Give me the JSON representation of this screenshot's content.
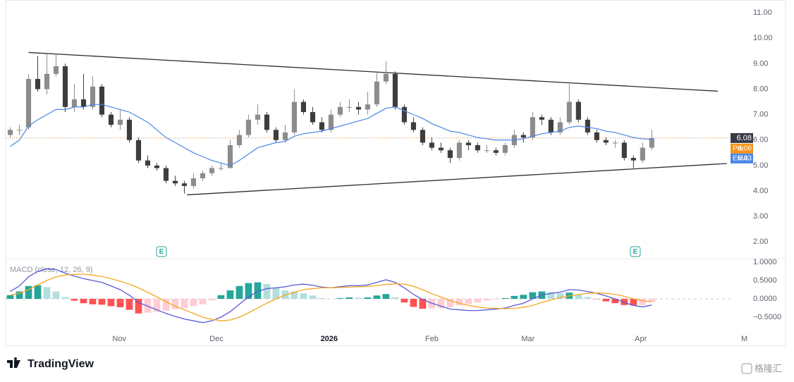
{
  "chart_data": [
    {
      "type": "candlestick",
      "ohlc": [
        [
          6.2,
          6.5,
          6.1,
          6.4
        ],
        [
          6.4,
          6.6,
          6.2,
          6.4
        ],
        [
          6.5,
          8.6,
          6.4,
          8.4
        ],
        [
          8.4,
          9.3,
          7.9,
          8.0
        ],
        [
          8.0,
          9.4,
          7.8,
          8.6
        ],
        [
          8.6,
          9.4,
          8.5,
          8.9
        ],
        [
          8.9,
          9.0,
          7.1,
          7.3
        ],
        [
          7.3,
          8.2,
          7.1,
          7.6
        ],
        [
          7.6,
          8.6,
          7.2,
          7.3
        ],
        [
          7.3,
          8.5,
          7.2,
          8.1
        ],
        [
          8.1,
          8.2,
          6.9,
          7.0
        ],
        [
          7.0,
          7.1,
          6.5,
          6.6
        ],
        [
          6.6,
          7.2,
          6.4,
          6.8
        ],
        [
          6.8,
          6.9,
          5.9,
          6.0
        ],
        [
          6.0,
          6.1,
          5.1,
          5.2
        ],
        [
          5.2,
          5.4,
          4.9,
          5.0
        ],
        [
          5.0,
          5.1,
          4.8,
          4.9
        ],
        [
          4.9,
          5.0,
          4.3,
          4.4
        ],
        [
          4.4,
          4.6,
          4.2,
          4.3
        ],
        [
          4.3,
          4.4,
          3.9,
          4.2
        ],
        [
          4.2,
          4.7,
          4.1,
          4.5
        ],
        [
          4.5,
          4.8,
          4.4,
          4.7
        ],
        [
          4.7,
          5.0,
          4.6,
          4.9
        ],
        [
          4.9,
          5.1,
          4.8,
          4.9
        ],
        [
          4.9,
          6.0,
          4.9,
          5.8
        ],
        [
          5.8,
          6.4,
          5.7,
          6.2
        ],
        [
          6.2,
          7.0,
          6.1,
          6.8
        ],
        [
          6.8,
          7.4,
          6.6,
          7.0
        ],
        [
          7.0,
          7.1,
          6.3,
          6.4
        ],
        [
          6.4,
          6.5,
          5.9,
          6.0
        ],
        [
          6.0,
          6.6,
          5.9,
          6.3
        ],
        [
          6.3,
          8.0,
          6.2,
          7.5
        ],
        [
          7.5,
          7.6,
          7.0,
          7.1
        ],
        [
          7.1,
          7.3,
          6.6,
          6.7
        ],
        [
          6.7,
          6.9,
          6.3,
          6.4
        ],
        [
          6.4,
          7.2,
          6.3,
          7.0
        ],
        [
          7.0,
          7.5,
          6.9,
          7.3
        ],
        [
          7.3,
          7.6,
          7.1,
          7.3
        ],
        [
          7.3,
          7.5,
          7.0,
          7.2
        ],
        [
          7.2,
          7.9,
          7.0,
          7.4
        ],
        [
          7.4,
          8.7,
          7.3,
          8.3
        ],
        [
          8.3,
          9.1,
          8.2,
          8.6
        ],
        [
          8.6,
          8.7,
          7.2,
          7.3
        ],
        [
          7.3,
          7.4,
          6.6,
          6.7
        ],
        [
          6.7,
          6.9,
          6.3,
          6.4
        ],
        [
          6.4,
          6.5,
          5.8,
          5.9
        ],
        [
          5.9,
          6.1,
          5.6,
          5.7
        ],
        [
          5.7,
          5.9,
          5.5,
          5.6
        ],
        [
          5.6,
          5.7,
          5.1,
          5.3
        ],
        [
          5.3,
          6.0,
          5.2,
          5.9
        ],
        [
          5.9,
          6.0,
          5.6,
          5.8
        ],
        [
          5.8,
          5.9,
          5.5,
          5.6
        ],
        [
          5.6,
          5.8,
          5.5,
          5.6
        ],
        [
          5.6,
          5.7,
          5.4,
          5.5
        ],
        [
          5.5,
          5.9,
          5.4,
          5.8
        ],
        [
          5.8,
          6.4,
          5.7,
          6.2
        ],
        [
          6.2,
          6.3,
          5.9,
          6.1
        ],
        [
          6.1,
          7.1,
          6.0,
          6.9
        ],
        [
          6.9,
          7.0,
          6.6,
          6.8
        ],
        [
          6.8,
          6.9,
          6.2,
          6.3
        ],
        [
          6.3,
          6.9,
          6.2,
          6.7
        ],
        [
          6.7,
          8.2,
          6.6,
          7.5
        ],
        [
          7.5,
          7.6,
          6.7,
          6.8
        ],
        [
          6.8,
          6.9,
          6.2,
          6.3
        ],
        [
          6.3,
          6.4,
          5.9,
          6.0
        ],
        [
          6.0,
          6.1,
          5.8,
          5.9
        ],
        [
          5.9,
          6.0,
          5.7,
          5.9
        ],
        [
          5.9,
          6.0,
          5.2,
          5.3
        ],
        [
          5.3,
          5.4,
          4.9,
          5.2
        ],
        [
          5.2,
          5.9,
          5.1,
          5.7
        ],
        [
          5.7,
          6.4,
          5.6,
          6.08
        ]
      ],
      "up_color": "#8c8c8c",
      "down_color": "#3d3d3d",
      "series": [
        {
          "name": "EMA",
          "color": "#4a86e8",
          "values": [
            5.75,
            6.0,
            6.55,
            6.8,
            7.0,
            7.2,
            7.2,
            7.3,
            7.3,
            7.4,
            7.4,
            7.3,
            7.2,
            7.1,
            6.9,
            6.7,
            6.4,
            6.1,
            5.9,
            5.7,
            5.5,
            5.35,
            5.2,
            5.1,
            5.0,
            5.2,
            5.45,
            5.7,
            5.8,
            5.9,
            5.95,
            6.15,
            6.25,
            6.3,
            6.35,
            6.45,
            6.55,
            6.65,
            6.75,
            6.85,
            7.05,
            7.25,
            7.3,
            7.15,
            7.0,
            6.85,
            6.65,
            6.5,
            6.35,
            6.3,
            6.2,
            6.1,
            6.05,
            6.0,
            6.0,
            6.0,
            6.05,
            6.15,
            6.25,
            6.3,
            6.35,
            6.5,
            6.55,
            6.5,
            6.45,
            6.35,
            6.3,
            6.2,
            6.1,
            6.05,
            6.03
          ]
        }
      ],
      "pre_market": {
        "label": "Pre",
        "value": 6.06,
        "color": "#f7931a"
      },
      "trendlines": [
        {
          "x": [
            2,
            77.2
          ],
          "y": [
            9.44,
            7.92
          ]
        },
        {
          "x": [
            19.3,
            78.2
          ],
          "y": [
            3.85,
            5.08
          ]
        }
      ],
      "events": [
        {
          "x": 16.5,
          "label": "E"
        },
        {
          "x": 68.2,
          "label": "E"
        }
      ],
      "xlim": [
        -0.5,
        78.9
      ],
      "xticks": [
        {
          "value": 11.9,
          "label": "Nov"
        },
        {
          "value": 22.5,
          "label": "Dec"
        },
        {
          "value": 34.8,
          "label": "2026"
        },
        {
          "value": 46.0,
          "label": "Feb"
        },
        {
          "value": 56.5,
          "label": "Mar"
        },
        {
          "value": 68.8,
          "label": "Apr"
        },
        {
          "value": 80.1,
          "label": "M"
        }
      ],
      "ylim": [
        1.4,
        11.5
      ],
      "yticks": [
        {
          "value": 2,
          "label": "2.00"
        },
        {
          "value": 3,
          "label": "3.00"
        },
        {
          "value": 4,
          "label": "4.00"
        },
        {
          "value": 5,
          "label": "5.00"
        },
        {
          "value": 6,
          "label": "6.00"
        },
        {
          "value": 7,
          "label": "7.00"
        },
        {
          "value": 8,
          "label": "8.00"
        },
        {
          "value": 9,
          "label": "9.00"
        },
        {
          "value": 10,
          "label": "10.00"
        },
        {
          "value": 11,
          "label": "11.00"
        }
      ]
    },
    {
      "type": "macd",
      "title": "MACD (close, 12, 26, 9)",
      "series": [
        {
          "color": "#5b5bd6",
          "values": [
            0.2,
            0.35,
            0.6,
            0.75,
            0.82,
            0.8,
            0.7,
            0.62,
            0.55,
            0.5,
            0.45,
            0.35,
            0.25,
            0.1,
            -0.1,
            -0.2,
            -0.3,
            -0.4,
            -0.48,
            -0.55,
            -0.6,
            -0.65,
            -0.6,
            -0.5,
            -0.35,
            -0.15,
            0.05,
            0.2,
            0.28,
            0.3,
            0.33,
            0.38,
            0.4,
            0.37,
            0.32,
            0.3,
            0.33,
            0.36,
            0.36,
            0.38,
            0.45,
            0.52,
            0.45,
            0.3,
            0.12,
            -0.02,
            -0.12,
            -0.2,
            -0.28,
            -0.3,
            -0.32,
            -0.32,
            -0.3,
            -0.28,
            -0.25,
            -0.18,
            -0.12,
            0.0,
            0.1,
            0.15,
            0.18,
            0.25,
            0.24,
            0.2,
            0.15,
            0.08,
            0.0,
            -0.1,
            -0.18,
            -0.22,
            -0.17
          ]
        },
        {
          "color": "#f5a623",
          "values": [
            0.1,
            0.15,
            0.25,
            0.38,
            0.5,
            0.6,
            0.65,
            0.67,
            0.67,
            0.65,
            0.61,
            0.55,
            0.48,
            0.4,
            0.3,
            0.18,
            0.05,
            -0.08,
            -0.2,
            -0.3,
            -0.4,
            -0.5,
            -0.56,
            -0.6,
            -0.58,
            -0.5,
            -0.38,
            -0.25,
            -0.12,
            0.0,
            0.1,
            0.18,
            0.25,
            0.28,
            0.3,
            0.3,
            0.31,
            0.32,
            0.33,
            0.34,
            0.36,
            0.39,
            0.41,
            0.4,
            0.34,
            0.25,
            0.14,
            0.05,
            -0.05,
            -0.12,
            -0.18,
            -0.22,
            -0.25,
            -0.26,
            -0.27,
            -0.26,
            -0.23,
            -0.18,
            -0.1,
            -0.03,
            0.03,
            0.08,
            0.12,
            0.15,
            0.16,
            0.15,
            0.12,
            0.07,
            0.0,
            -0.05,
            -0.08
          ]
        }
      ],
      "histogram": [
        0.1,
        0.2,
        0.35,
        0.37,
        0.32,
        0.2,
        0.05,
        -0.05,
        -0.12,
        -0.15,
        -0.16,
        -0.2,
        -0.23,
        -0.3,
        -0.4,
        -0.38,
        -0.35,
        -0.32,
        -0.28,
        -0.25,
        -0.2,
        -0.15,
        -0.04,
        0.1,
        0.23,
        0.35,
        0.43,
        0.45,
        0.4,
        0.3,
        0.23,
        0.2,
        0.15,
        0.09,
        0.02,
        0.0,
        0.02,
        0.04,
        0.03,
        0.04,
        0.09,
        0.13,
        0.04,
        -0.1,
        -0.22,
        -0.27,
        -0.26,
        -0.25,
        -0.23,
        -0.18,
        -0.14,
        -0.1,
        -0.05,
        -0.02,
        0.02,
        0.08,
        0.11,
        0.18,
        0.2,
        0.18,
        0.15,
        0.17,
        0.12,
        0.05,
        -0.01,
        -0.07,
        -0.12,
        -0.17,
        -0.18,
        -0.17,
        -0.09
      ],
      "hist_colors": {
        "pos_rising": "#26a69a",
        "pos_falling": "#b2dfdb",
        "neg_falling": "#ff5252",
        "neg_rising": "#ffcdd2"
      },
      "ylim": [
        -0.885,
        1.096
      ],
      "yticks": [
        {
          "value": -0.5,
          "label": "−0.5000"
        },
        {
          "value": 0,
          "label": "0.0000"
        },
        {
          "value": 0.5,
          "label": "0.5000"
        },
        {
          "value": 1,
          "label": "1.0000"
        }
      ]
    }
  ],
  "brand": "TradingView",
  "watermark": "格隆汇"
}
